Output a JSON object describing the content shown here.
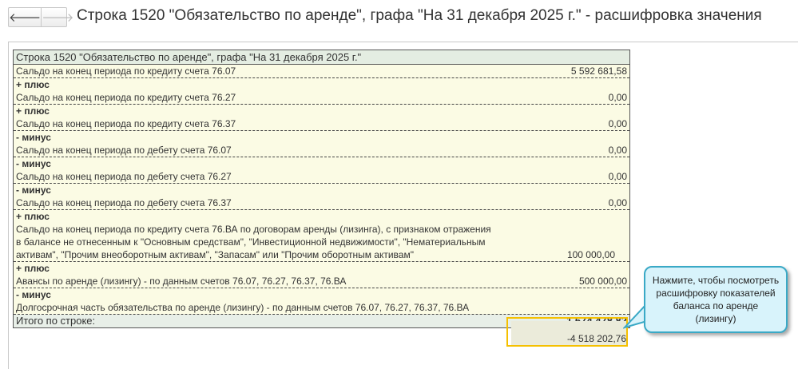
{
  "header": {
    "title": "Строка 1520 \"Обязательство по аренде\", графа \"На 31 декабря 2025 г.\" - расшифровка значения",
    "back_icon": "arrow-left-icon",
    "forward_icon": "arrow-right-icon",
    "back": "🡐",
    "forward": "🡒"
  },
  "table": {
    "title": "Строка 1520 \"Обязательство по аренде\", графа \"На 31 декабря 2025 г.\"",
    "rows": [
      {
        "label": "Сальдо на конец периода по кредиту счета 76.07",
        "value": "5 592 681,58"
      },
      {
        "label": "+ плюс",
        "op": true
      },
      {
        "label": "Сальдо на конец периода по кредиту счета 76.27",
        "value": "0,00"
      },
      {
        "label": "+ плюс",
        "op": true
      },
      {
        "label": "Сальдо на конец периода по кредиту счета 76.37",
        "value": "0,00"
      },
      {
        "label": "- минус",
        "op": true
      },
      {
        "label": "Сальдо на конец периода по дебету счета 76.07",
        "value": "0,00"
      },
      {
        "label": "- минус",
        "op": true
      },
      {
        "label": "Сальдо на конец периода по дебету счета 76.27",
        "value": "0,00"
      },
      {
        "label": "- минус",
        "op": true
      },
      {
        "label": "Сальдо на конец периода по дебету счета 76.37",
        "value": "0,00"
      },
      {
        "label": "+ плюс",
        "op": true
      },
      {
        "label": "Сальдо на конец периода по кредиту счета 76.ВА по договорам аренды (лизинга), с признаком отражения в балансе не отнесенным к \"Основным средствам\", \"Инвестиционной недвижимости\", \"Нематериальным активам\", \"Прочим внеоборотным активам\", \"Запасам\" или \"Прочим оборотным активам\"",
        "value": "100 000,00"
      },
      {
        "label": "+ плюс",
        "op": true
      },
      {
        "label": "Авансы по аренде (лизингу) - по данным счетов 76.07, 76.27, 76.37, 76.ВА",
        "value": "500 000,00"
      },
      {
        "label": "- минус",
        "op": true
      },
      {
        "label": "Долгосрочная часть обязательства по аренде (лизингу) - по данным счетов 76.07, 76.27, 76.37, 76.ВА",
        "value": "-4 518 202,76",
        "highlight": true
      }
    ],
    "total_label": "Итого по строке:",
    "total_value": "1 674 478,82"
  },
  "callout": {
    "text": "Нажмите, чтобы посмотреть расшифровку показателей баланса по аренде (лизингу)"
  },
  "colors": {
    "highlight_border": "#f5c000",
    "callout_bg": "#d8f3fb",
    "callout_border": "#3aa9c6"
  }
}
